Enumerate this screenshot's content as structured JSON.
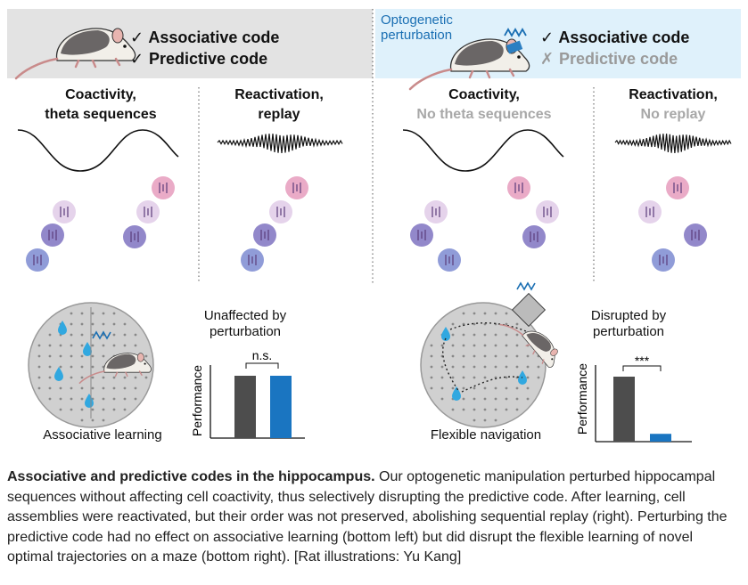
{
  "header_left": {
    "items": [
      {
        "mark": "✓",
        "label": "Associative code"
      },
      {
        "mark": "✓",
        "label": "Predictive code"
      }
    ]
  },
  "header_right": {
    "tag": [
      "Optogenetic",
      "perturbation"
    ],
    "items": [
      {
        "mark": "✓",
        "label": "Associative code"
      },
      {
        "mark": "✗",
        "label": "Predictive code"
      }
    ]
  },
  "panels": [
    {
      "title": "Coactivity,",
      "sub": "theta sequences"
    },
    {
      "title": "Reactivation,",
      "sub": "replay"
    },
    {
      "title": "Coactivity,",
      "sub": "No theta sequences"
    },
    {
      "title": "Reactivation,",
      "sub": "No replay"
    }
  ],
  "bottom_left": {
    "task_label": "Associative learning",
    "result_label": [
      "Unaffected by",
      "perturbation"
    ],
    "ylabel": "Performance",
    "significance": "n.s."
  },
  "bottom_right": {
    "task_label": "Flexible navigation",
    "result_label": [
      "Disrupted by",
      "perturbation"
    ],
    "ylabel": "Performance",
    "significance": "***"
  },
  "chart_data": [
    {
      "type": "bar",
      "categories": [
        "",
        ""
      ],
      "values": [
        1.0,
        1.0
      ],
      "ylabel": "Performance",
      "colors": [
        "#4d4d4d",
        "#1a75c1"
      ]
    },
    {
      "type": "bar",
      "categories": [
        "",
        ""
      ],
      "values": [
        1.0,
        0.12
      ],
      "ylabel": "Performance",
      "colors": [
        "#4d4d4d",
        "#1a75c1"
      ]
    }
  ],
  "caption": {
    "bold": "Associative and predictive codes in the hippocampus.",
    "text": " Our optogenetic manipulation perturbed hippocampal sequences without affecting cell coactivity, thus selectively disrupting the predictive code. After learning, cell assemblies were reactivated, but their order was not preserved, abolishing sequential replay (right). Perturbing the predictive code had no effect on associative learning (bottom left) but did disrupt the flexible learning of novel optimal trajectories on a maze (bottom right). [Rat illustrations: Yu Kang]"
  },
  "colors": {
    "pink": "#e9a6c4",
    "lilac": "#e4d1ea",
    "purple": "#8c82c7",
    "blue": "#8a97d6",
    "opto_blue": "#1a6fb3",
    "bar_dark": "#4d4d4d",
    "bar_blue": "#1a75c1"
  }
}
